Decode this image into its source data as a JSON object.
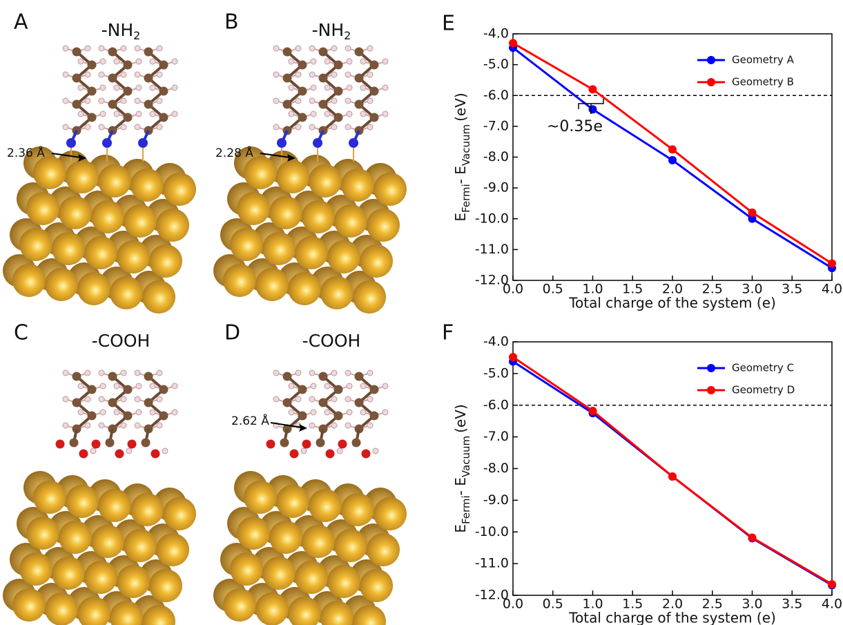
{
  "panels": [
    {
      "label": "A",
      "title": "-NH",
      "title_subscript": "2",
      "annotation": "2.36 Å"
    },
    {
      "label": "B",
      "title": "-NH",
      "title_subscript": "2",
      "annotation": "2.28 Å"
    },
    {
      "label": "C",
      "title": "-COOH"
    },
    {
      "label": "D",
      "title": "-COOH",
      "annotation": "2.62 Å"
    }
  ],
  "chart_data": [
    {
      "type": "line",
      "panel_label": "E",
      "xlabel": "Total charge of the system (e)",
      "ylabel": [
        "E",
        "Fermi",
        "- E",
        "Vacuum",
        "(eV)"
      ],
      "x": [
        0,
        1,
        2,
        3,
        4
      ],
      "series": [
        {
          "name": "Geometry A",
          "color": "#0000ff",
          "values": [
            -4.45,
            -6.45,
            -8.1,
            -10.0,
            -11.6
          ]
        },
        {
          "name": "Geometry B",
          "color": "#ff0000",
          "values": [
            -4.3,
            -5.8,
            -7.75,
            -9.8,
            -11.45
          ]
        }
      ],
      "xlim": [
        0,
        4
      ],
      "ylim": [
        -12,
        -4
      ],
      "xticks": [
        {
          "value": 0,
          "label": "0.0"
        },
        {
          "value": 0.5,
          "label": "0.5"
        },
        {
          "value": 1,
          "label": "1.0"
        },
        {
          "value": 1.5,
          "label": "1.5"
        },
        {
          "value": 2,
          "label": "2.0"
        },
        {
          "value": 2.5,
          "label": "2.5"
        },
        {
          "value": 3,
          "label": "3.0"
        },
        {
          "value": 3.5,
          "label": "3.5"
        },
        {
          "value": 4,
          "label": "4.0"
        }
      ],
      "yticks": [
        {
          "value": -4,
          "label": "-4.0"
        },
        {
          "value": -5,
          "label": "-5.0"
        },
        {
          "value": -6,
          "label": "-6.0"
        },
        {
          "value": -7,
          "label": "-7.0"
        },
        {
          "value": -8,
          "label": "-8.0"
        },
        {
          "value": -9,
          "label": "-9.0"
        },
        {
          "value": -10,
          "label": "-10.0"
        },
        {
          "value": -11,
          "label": "-11.0"
        },
        {
          "value": -12,
          "label": "-12.0"
        }
      ],
      "reference_line": -6,
      "annotation": "~0.35e",
      "legend": "upper right"
    },
    {
      "type": "line",
      "panel_label": "F",
      "xlabel": "Total charge of the system (e)",
      "ylabel": [
        "E",
        "Fermi",
        "- E",
        "Vacuum",
        "(eV)"
      ],
      "x": [
        0,
        1,
        2,
        3,
        4
      ],
      "series": [
        {
          "name": "Geometry C",
          "color": "#0000ff",
          "values": [
            -4.62,
            -6.25,
            -8.25,
            -10.2,
            -11.68
          ]
        },
        {
          "name": "Geometry D",
          "color": "#ff0000",
          "values": [
            -4.48,
            -6.18,
            -8.25,
            -10.18,
            -11.65
          ]
        }
      ],
      "xlim": [
        0,
        4
      ],
      "ylim": [
        -12,
        -4
      ],
      "xticks": [
        {
          "value": 0,
          "label": "0.0"
        },
        {
          "value": 0.5,
          "label": "0.5"
        },
        {
          "value": 1,
          "label": "1.0"
        },
        {
          "value": 1.5,
          "label": "1.5"
        },
        {
          "value": 2,
          "label": "2.0"
        },
        {
          "value": 2.5,
          "label": "2.5"
        },
        {
          "value": 3,
          "label": "3.0"
        },
        {
          "value": 3.5,
          "label": "3.5"
        },
        {
          "value": 4,
          "label": "4.0"
        }
      ],
      "yticks": [
        {
          "value": -4,
          "label": "-4.0"
        },
        {
          "value": -5,
          "label": "-5.0"
        },
        {
          "value": -6,
          "label": "-6.0"
        },
        {
          "value": -7,
          "label": "-7.0"
        },
        {
          "value": -8,
          "label": "-8.0"
        },
        {
          "value": -9,
          "label": "-9.0"
        },
        {
          "value": -10,
          "label": "-10.0"
        },
        {
          "value": -11,
          "label": "-11.0"
        },
        {
          "value": -12,
          "label": "-12.0"
        }
      ],
      "reference_line": -6,
      "legend": "upper right"
    }
  ]
}
